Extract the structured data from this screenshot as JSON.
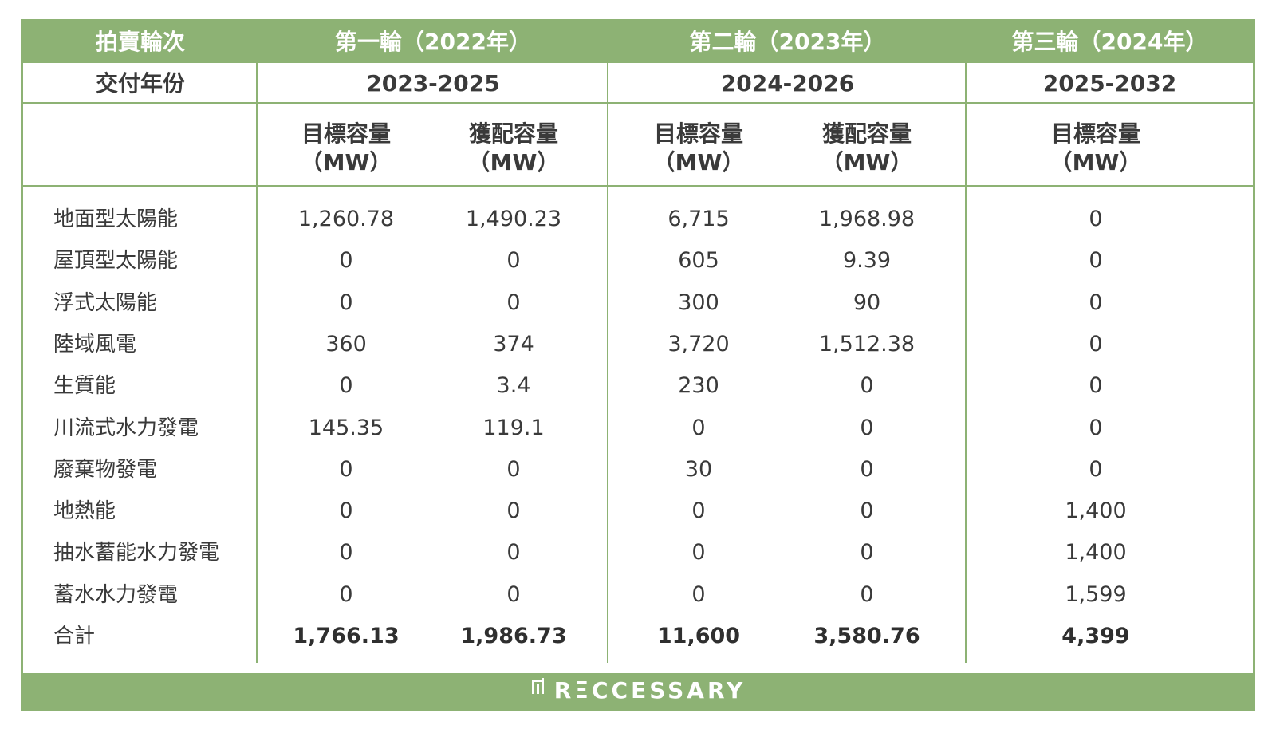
{
  "header": {
    "round_label": "拍賣輪次",
    "round1": "第一輪（2022年）",
    "round2": "第二輪（2023年）",
    "round3": "第三輪（2024年）"
  },
  "delivery": {
    "label": "交付年份",
    "round1": "2023-2025",
    "round2": "2024-2026",
    "round3": "2025-2032"
  },
  "columns": {
    "target": "目標容量",
    "awarded": "獲配容量",
    "unit": "（MW）"
  },
  "footer": {
    "brand": "RΞCCESSARY",
    "logo_icon": "reccessary-logo-icon"
  },
  "colors": {
    "accent": "#8db274",
    "text": "#3a3a3a"
  },
  "chart_data": {
    "type": "table",
    "columns": [
      "第一輪（2022年） 目標容量（MW）",
      "第一輪（2022年） 獲配容量（MW）",
      "第二輪（2023年） 目標容量（MW）",
      "第二輪（2023年） 獲配容量（MW）",
      "第三輪（2024年） 目標容量（MW）"
    ],
    "rows": [
      {
        "label": "地面型太陽能",
        "values": [
          "1,260.78",
          "1,490.23",
          "6,715",
          "1,968.98",
          "0"
        ]
      },
      {
        "label": "屋頂型太陽能",
        "values": [
          "0",
          "0",
          "605",
          "9.39",
          "0"
        ]
      },
      {
        "label": "浮式太陽能",
        "values": [
          "0",
          "0",
          "300",
          "90",
          "0"
        ]
      },
      {
        "label": "陸域風電",
        "values": [
          "360",
          "374",
          "3,720",
          "1,512.38",
          "0"
        ]
      },
      {
        "label": "生質能",
        "values": [
          "0",
          "3.4",
          "230",
          "0",
          "0"
        ]
      },
      {
        "label": "川流式水力發電",
        "values": [
          "145.35",
          "119.1",
          "0",
          "0",
          "0"
        ]
      },
      {
        "label": "廢棄物發電",
        "values": [
          "0",
          "0",
          "30",
          "0",
          "0"
        ]
      },
      {
        "label": "地熱能",
        "values": [
          "0",
          "0",
          "0",
          "0",
          "1,400"
        ]
      },
      {
        "label": "抽水蓄能水力發電",
        "values": [
          "0",
          "0",
          "0",
          "0",
          "1,400"
        ]
      },
      {
        "label": "蓄水水力發電",
        "values": [
          "0",
          "0",
          "0",
          "0",
          "1,599"
        ]
      }
    ],
    "total": {
      "label": "合計",
      "values": [
        "1,766.13",
        "1,986.73",
        "11,600",
        "3,580.76",
        "4,399"
      ]
    }
  }
}
